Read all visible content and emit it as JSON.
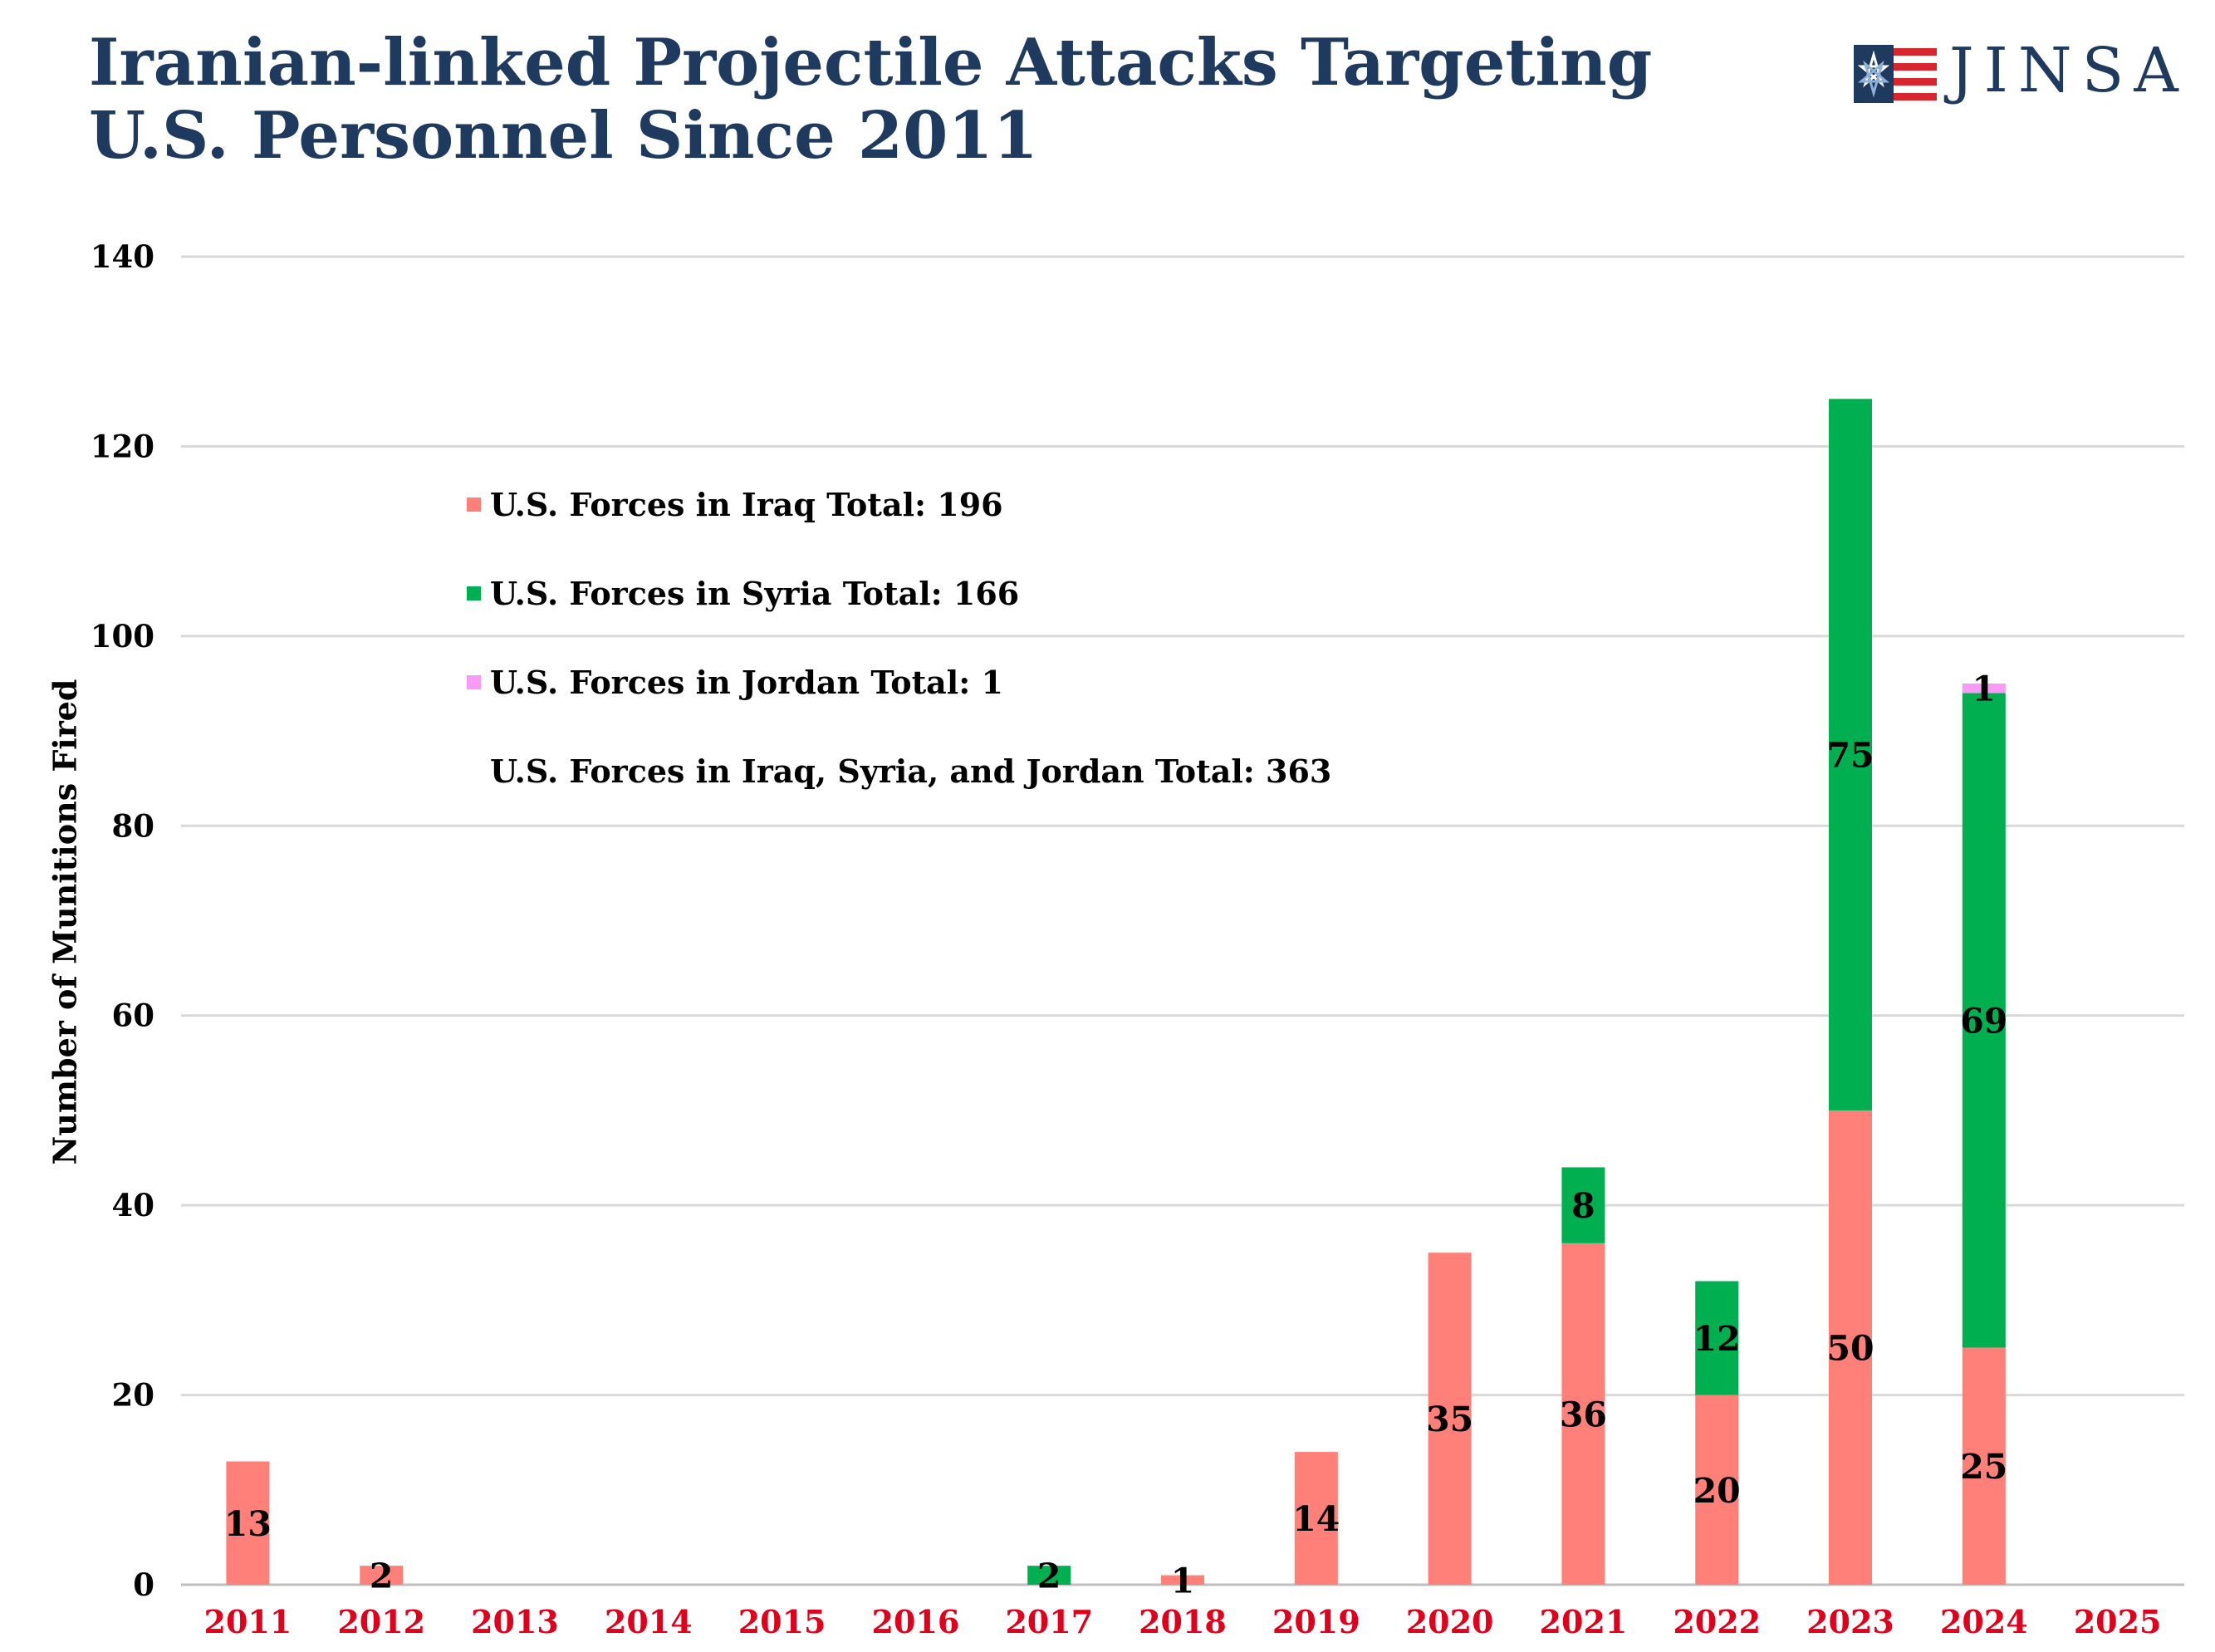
{
  "title": "Iranian-linked Projectile Attacks Targeting U.S. Personnel Since 2011",
  "logo": {
    "text": "JINSA",
    "icon": "flag-star-icon"
  },
  "colors": {
    "iraq": "#ff8078",
    "syria": "#00b050",
    "jordan": "#f79bf7",
    "title": "#1f3a5f",
    "xtick": "#e0001b",
    "grid": "#d9d9d9"
  },
  "legend": [
    {
      "label": "U.S. Forces in Iraq Total: 196",
      "color": "#ff8078"
    },
    {
      "label": "U.S. Forces in Syria Total: 166",
      "color": "#00b050"
    },
    {
      "label": "U.S. Forces in Jordan Total: 1",
      "color": "#f79bf7"
    },
    {
      "label": "U.S. Forces in Iraq, Syria, and Jordan Total: 363",
      "color": null
    }
  ],
  "chart_data": {
    "type": "bar",
    "stacked": true,
    "title": "Iranian-linked Projectile Attacks Targeting U.S. Personnel Since 2011",
    "xlabel": "",
    "ylabel": "Number of Munitions Fired",
    "ylim": [
      0,
      140
    ],
    "yticks": [
      0,
      20,
      40,
      60,
      80,
      100,
      120,
      140
    ],
    "grid": true,
    "categories": [
      "2011",
      "2012",
      "2013",
      "2014",
      "2015",
      "2016",
      "2017",
      "2018",
      "2019",
      "2020",
      "2021",
      "2022",
      "2023",
      "2024",
      "2025"
    ],
    "series": [
      {
        "name": "U.S. Forces in Iraq",
        "color": "#ff8078",
        "values": [
          13,
          2,
          0,
          0,
          0,
          0,
          0,
          1,
          14,
          35,
          36,
          20,
          50,
          25,
          0
        ]
      },
      {
        "name": "U.S. Forces in Syria",
        "color": "#00b050",
        "values": [
          0,
          0,
          0,
          0,
          0,
          0,
          2,
          0,
          0,
          0,
          8,
          12,
          75,
          69,
          0
        ]
      },
      {
        "name": "U.S. Forces in Jordan",
        "color": "#f79bf7",
        "values": [
          0,
          0,
          0,
          0,
          0,
          0,
          0,
          0,
          0,
          0,
          0,
          0,
          0,
          1,
          0
        ]
      }
    ]
  }
}
